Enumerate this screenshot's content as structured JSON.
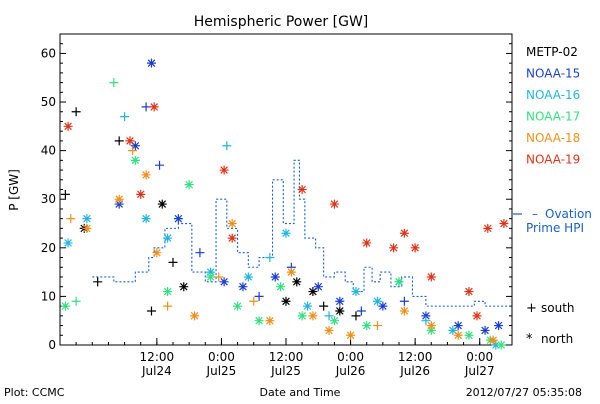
{
  "chart_data": {
    "type": "scatter",
    "title": "Hemispheric Power [GW]",
    "ylabel": "P [GW]",
    "xlabel": "Date and Time",
    "xlim": [
      "2012-07-23T18:00",
      "2012-07-27T06:00"
    ],
    "ylim": [
      0,
      64
    ],
    "yticks": [
      0,
      10,
      20,
      30,
      40,
      50,
      60
    ],
    "xticks": [
      {
        "t": "2012-07-24T12:00",
        "time": "12:00",
        "date": "Jul24"
      },
      {
        "t": "2012-07-25T00:00",
        "time": "0:00",
        "date": "Jul25"
      },
      {
        "t": "2012-07-25T12:00",
        "time": "12:00",
        "date": "Jul25"
      },
      {
        "t": "2012-07-26T00:00",
        "time": "0:00",
        "date": "Jul26"
      },
      {
        "t": "2012-07-26T12:00",
        "time": "12:00",
        "date": "Jul26"
      },
      {
        "t": "2012-07-27T00:00",
        "time": "0:00",
        "date": "Jul27"
      }
    ],
    "grid": false,
    "legend_position": "right",
    "legend": [
      {
        "name": "METP-02",
        "color": "#000000"
      },
      {
        "name": "NOAA-15",
        "color": "#1a3fd0"
      },
      {
        "name": "NOAA-16",
        "color": "#22b5e0"
      },
      {
        "name": "NOAA-17",
        "color": "#33e080"
      },
      {
        "name": "NOAA-18",
        "color": "#f0901a"
      },
      {
        "name": "NOAA-19",
        "color": "#e03318"
      }
    ],
    "model_series": {
      "name_line1": "Ovation",
      "name_line2": "Prime HPI",
      "color": "#1a5fc8",
      "points": [
        [
          "2012-07-24T00:00",
          14
        ],
        [
          "2012-07-24T04:00",
          13
        ],
        [
          "2012-07-24T08:00",
          15
        ],
        [
          "2012-07-24T10:30",
          18
        ],
        [
          "2012-07-24T11:30",
          20
        ],
        [
          "2012-07-24T13:30",
          24
        ],
        [
          "2012-07-24T16:00",
          25
        ],
        [
          "2012-07-24T18:30",
          15
        ],
        [
          "2012-07-24T21:00",
          13
        ],
        [
          "2012-07-24T23:00",
          30
        ],
        [
          "2012-07-25T00:30",
          30
        ],
        [
          "2012-07-25T01:00",
          24
        ],
        [
          "2012-07-25T03:00",
          19
        ],
        [
          "2012-07-25T05:00",
          16
        ],
        [
          "2012-07-25T07:00",
          18
        ],
        [
          "2012-07-25T09:30",
          34
        ],
        [
          "2012-07-25T11:30",
          25
        ],
        [
          "2012-07-25T13:30",
          38
        ],
        [
          "2012-07-25T14:30",
          30
        ],
        [
          "2012-07-25T15:30",
          22
        ],
        [
          "2012-07-25T17:30",
          20
        ],
        [
          "2012-07-25T19:00",
          14
        ],
        [
          "2012-07-25T21:00",
          15
        ],
        [
          "2012-07-25T23:00",
          13
        ],
        [
          "2012-07-26T00:30",
          11
        ],
        [
          "2012-07-26T02:30",
          16
        ],
        [
          "2012-07-26T04:00",
          13
        ],
        [
          "2012-07-26T05:30",
          15
        ],
        [
          "2012-07-26T07:30",
          12
        ],
        [
          "2012-07-26T09:30",
          14
        ],
        [
          "2012-07-26T11:30",
          10
        ],
        [
          "2012-07-26T14:00",
          8
        ],
        [
          "2012-07-26T18:00",
          8
        ],
        [
          "2012-07-26T22:00",
          8
        ],
        [
          "2012-07-26T23:00",
          9
        ],
        [
          "2012-07-27T01:00",
          8
        ],
        [
          "2012-07-27T03:00",
          8
        ]
      ]
    },
    "marker_legend": [
      {
        "symbol": "+",
        "label": "south"
      },
      {
        "symbol": "*",
        "label": "north"
      }
    ],
    "observations": {
      "METP-02": [
        [
          "2012-07-23T19:00",
          31,
          "+"
        ],
        [
          "2012-07-23T21:00",
          48,
          "+"
        ],
        [
          "2012-07-23T22:30",
          24,
          "*"
        ],
        [
          "2012-07-24T01:00",
          13,
          "+"
        ],
        [
          "2012-07-24T05:00",
          42,
          "+"
        ],
        [
          "2012-07-24T11:00",
          7,
          "+"
        ],
        [
          "2012-07-24T13:00",
          29,
          "*"
        ],
        [
          "2012-07-24T15:00",
          17,
          "+"
        ],
        [
          "2012-07-24T17:00",
          12,
          "*"
        ],
        [
          "2012-07-25T12:00",
          9,
          "*"
        ],
        [
          "2012-07-25T14:00",
          13,
          "*"
        ],
        [
          "2012-07-25T17:00",
          11,
          "*"
        ],
        [
          "2012-07-25T19:00",
          8,
          "+"
        ],
        [
          "2012-07-25T22:00",
          7,
          "*"
        ],
        [
          "2012-07-26T01:00",
          6,
          "+"
        ]
      ],
      "NOAA-15": [
        [
          "2012-07-24T05:00",
          29,
          "*"
        ],
        [
          "2012-07-24T08:00",
          41,
          "*"
        ],
        [
          "2012-07-24T10:00",
          49,
          "+"
        ],
        [
          "2012-07-24T11:00",
          58,
          "*"
        ],
        [
          "2012-07-24T12:30",
          37,
          "+"
        ],
        [
          "2012-07-24T16:00",
          26,
          "*"
        ],
        [
          "2012-07-24T20:00",
          19,
          "+"
        ],
        [
          "2012-07-25T00:30",
          13,
          "*"
        ],
        [
          "2012-07-25T04:00",
          12,
          "*"
        ],
        [
          "2012-07-25T07:00",
          10,
          "+"
        ],
        [
          "2012-07-25T10:00",
          14,
          "*"
        ],
        [
          "2012-07-25T13:00",
          16,
          "+"
        ],
        [
          "2012-07-25T18:00",
          12,
          "*"
        ],
        [
          "2012-07-25T22:00",
          9,
          "*"
        ],
        [
          "2012-07-26T02:00",
          7,
          "+"
        ],
        [
          "2012-07-26T06:00",
          8,
          "*"
        ],
        [
          "2012-07-26T10:00",
          9,
          "+"
        ],
        [
          "2012-07-26T14:00",
          6,
          "*"
        ],
        [
          "2012-07-26T20:00",
          4,
          "*"
        ],
        [
          "2012-07-27T01:00",
          3,
          "*"
        ],
        [
          "2012-07-27T03:30",
          4,
          "*"
        ]
      ],
      "NOAA-16": [
        [
          "2012-07-23T19:30",
          21,
          "*"
        ],
        [
          "2012-07-23T23:00",
          26,
          "*"
        ],
        [
          "2012-07-24T06:00",
          47,
          "+"
        ],
        [
          "2012-07-24T10:00",
          26,
          "*"
        ],
        [
          "2012-07-24T14:00",
          22,
          "*"
        ],
        [
          "2012-07-24T22:00",
          15,
          "*"
        ],
        [
          "2012-07-25T01:00",
          41,
          "+"
        ],
        [
          "2012-07-25T05:00",
          14,
          "*"
        ],
        [
          "2012-07-25T09:00",
          18,
          "+"
        ],
        [
          "2012-07-25T12:00",
          23,
          "*"
        ],
        [
          "2012-07-25T16:00",
          8,
          "*"
        ],
        [
          "2012-07-25T20:00",
          6,
          "+"
        ],
        [
          "2012-07-26T01:00",
          11,
          "*"
        ],
        [
          "2012-07-26T05:00",
          9,
          "*"
        ],
        [
          "2012-07-26T09:00",
          13,
          "*"
        ],
        [
          "2012-07-26T14:00",
          5,
          "+"
        ],
        [
          "2012-07-26T19:00",
          3,
          "*"
        ],
        [
          "2012-07-27T03:00",
          0,
          "*"
        ]
      ],
      "NOAA-17": [
        [
          "2012-07-23T19:00",
          8,
          "*"
        ],
        [
          "2012-07-23T21:00",
          9,
          "+"
        ],
        [
          "2012-07-24T04:00",
          54,
          "+"
        ],
        [
          "2012-07-24T08:00",
          38,
          "*"
        ],
        [
          "2012-07-24T14:00",
          11,
          "*"
        ],
        [
          "2012-07-24T18:00",
          33,
          "*"
        ],
        [
          "2012-07-24T22:00",
          14,
          "*"
        ],
        [
          "2012-07-25T03:00",
          8,
          "*"
        ],
        [
          "2012-07-25T07:00",
          5,
          "*"
        ],
        [
          "2012-07-25T11:00",
          12,
          "*"
        ],
        [
          "2012-07-25T15:00",
          6,
          "*"
        ],
        [
          "2012-07-25T21:00",
          5,
          "*"
        ],
        [
          "2012-07-26T03:00",
          4,
          "*"
        ],
        [
          "2012-07-26T09:00",
          13,
          "*"
        ],
        [
          "2012-07-26T15:00",
          3,
          "*"
        ],
        [
          "2012-07-26T22:00",
          2,
          "*"
        ],
        [
          "2012-07-27T02:00",
          1,
          "*"
        ],
        [
          "2012-07-27T04:00",
          0,
          "*"
        ]
      ],
      "NOAA-18": [
        [
          "2012-07-23T20:00",
          26,
          "+"
        ],
        [
          "2012-07-23T23:00",
          24,
          "*"
        ],
        [
          "2012-07-24T05:00",
          30,
          "*"
        ],
        [
          "2012-07-24T07:30",
          40,
          "+"
        ],
        [
          "2012-07-24T10:00",
          35,
          "*"
        ],
        [
          "2012-07-24T12:00",
          19,
          "*"
        ],
        [
          "2012-07-24T14:00",
          8,
          "+"
        ],
        [
          "2012-07-24T19:00",
          6,
          "*"
        ],
        [
          "2012-07-24T23:30",
          14,
          "+"
        ],
        [
          "2012-07-25T02:00",
          25,
          "*"
        ],
        [
          "2012-07-25T06:00",
          9,
          "+"
        ],
        [
          "2012-07-25T09:00",
          5,
          "*"
        ],
        [
          "2012-07-25T13:00",
          15,
          "*"
        ],
        [
          "2012-07-25T17:00",
          6,
          "*"
        ],
        [
          "2012-07-25T20:00",
          3,
          "*"
        ],
        [
          "2012-07-26T00:00",
          2,
          "*"
        ],
        [
          "2012-07-26T05:00",
          4,
          "+"
        ],
        [
          "2012-07-26T10:00",
          7,
          "*"
        ],
        [
          "2012-07-26T15:00",
          4,
          "*"
        ],
        [
          "2012-07-26T20:00",
          2,
          "*"
        ],
        [
          "2012-07-27T02:30",
          1,
          "*"
        ]
      ],
      "NOAA-19": [
        [
          "2012-07-23T19:30",
          45,
          "*"
        ],
        [
          "2012-07-24T07:00",
          42,
          "*"
        ],
        [
          "2012-07-24T09:00",
          31,
          "*"
        ],
        [
          "2012-07-24T11:30",
          49,
          "*"
        ],
        [
          "2012-07-25T00:30",
          36,
          "*"
        ],
        [
          "2012-07-25T02:00",
          22,
          "*"
        ],
        [
          "2012-07-25T15:00",
          32,
          "*"
        ],
        [
          "2012-07-25T21:00",
          29,
          "*"
        ],
        [
          "2012-07-26T03:00",
          21,
          "*"
        ],
        [
          "2012-07-26T08:00",
          20,
          "*"
        ],
        [
          "2012-07-26T10:00",
          23,
          "*"
        ],
        [
          "2012-07-26T12:00",
          20,
          "*"
        ],
        [
          "2012-07-26T15:00",
          14,
          "*"
        ],
        [
          "2012-07-26T22:00",
          11,
          "*"
        ],
        [
          "2012-07-26T23:30",
          6,
          "*"
        ],
        [
          "2012-07-27T01:30",
          24,
          "*"
        ],
        [
          "2012-07-27T04:30",
          25,
          "*"
        ]
      ]
    }
  },
  "footer": {
    "plot_credit": "Plot: CCMC",
    "timestamp": "2012/07/27 05:35:08"
  }
}
